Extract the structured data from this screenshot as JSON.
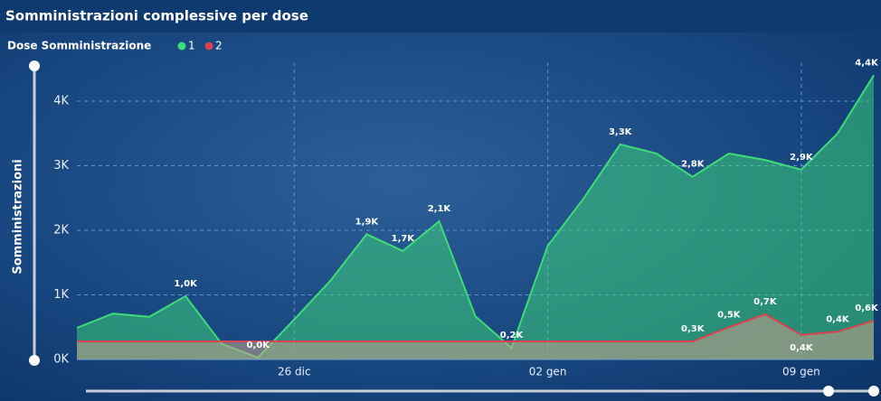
{
  "chart_data": {
    "type": "area",
    "title": "Somministrazioni complessive per dose",
    "legend_title": "Dose Somministrazione",
    "y_label": "Somministrazioni",
    "categories": [
      null,
      null,
      null,
      null,
      null,
      null,
      "26 dic",
      null,
      null,
      null,
      null,
      null,
      null,
      "02 gen",
      null,
      null,
      null,
      null,
      null,
      null,
      "09 gen",
      null,
      null
    ],
    "series": [
      {
        "name": "1",
        "color": "#3ddc78",
        "values": [
          0.49,
          0.71,
          0.66,
          0.98,
          0.24,
          0.03,
          0.62,
          1.22,
          1.94,
          1.68,
          2.14,
          0.67,
          0.18,
          1.76,
          2.5,
          3.33,
          3.19,
          2.83,
          3.19,
          3.09,
          2.94,
          3.5,
          4.4
        ],
        "value_labels": [
          null,
          null,
          null,
          "1,0K",
          null,
          "0,0K",
          null,
          null,
          "1,9K",
          "1,7K",
          "2,1K",
          null,
          "0,2K",
          null,
          null,
          "3,3K",
          null,
          "2,8K",
          null,
          null,
          "2,9K",
          null,
          "4,4K"
        ]
      },
      {
        "name": "2",
        "color": "#d9434f",
        "values": [
          0.28,
          0.28,
          0.28,
          0.28,
          0.28,
          0.28,
          0.28,
          0.28,
          0.28,
          0.28,
          0.28,
          0.28,
          0.28,
          0.28,
          0.28,
          0.28,
          0.28,
          0.28,
          0.5,
          0.7,
          0.38,
          0.43,
          0.6
        ],
        "value_labels": [
          null,
          null,
          null,
          null,
          null,
          null,
          null,
          null,
          null,
          null,
          null,
          null,
          null,
          null,
          null,
          null,
          null,
          "0,3K",
          "0,5K",
          "0,7K",
          "0,4K",
          "0,4K",
          "0,6K"
        ]
      }
    ],
    "ylim": [
      0,
      4.6
    ],
    "yticks": [
      {
        "value": 0,
        "label": "0K"
      },
      {
        "value": 1,
        "label": "1K"
      },
      {
        "value": 2,
        "label": "2K"
      },
      {
        "value": 3,
        "label": "3K"
      },
      {
        "value": 4,
        "label": "4K"
      }
    ],
    "grid": true
  }
}
